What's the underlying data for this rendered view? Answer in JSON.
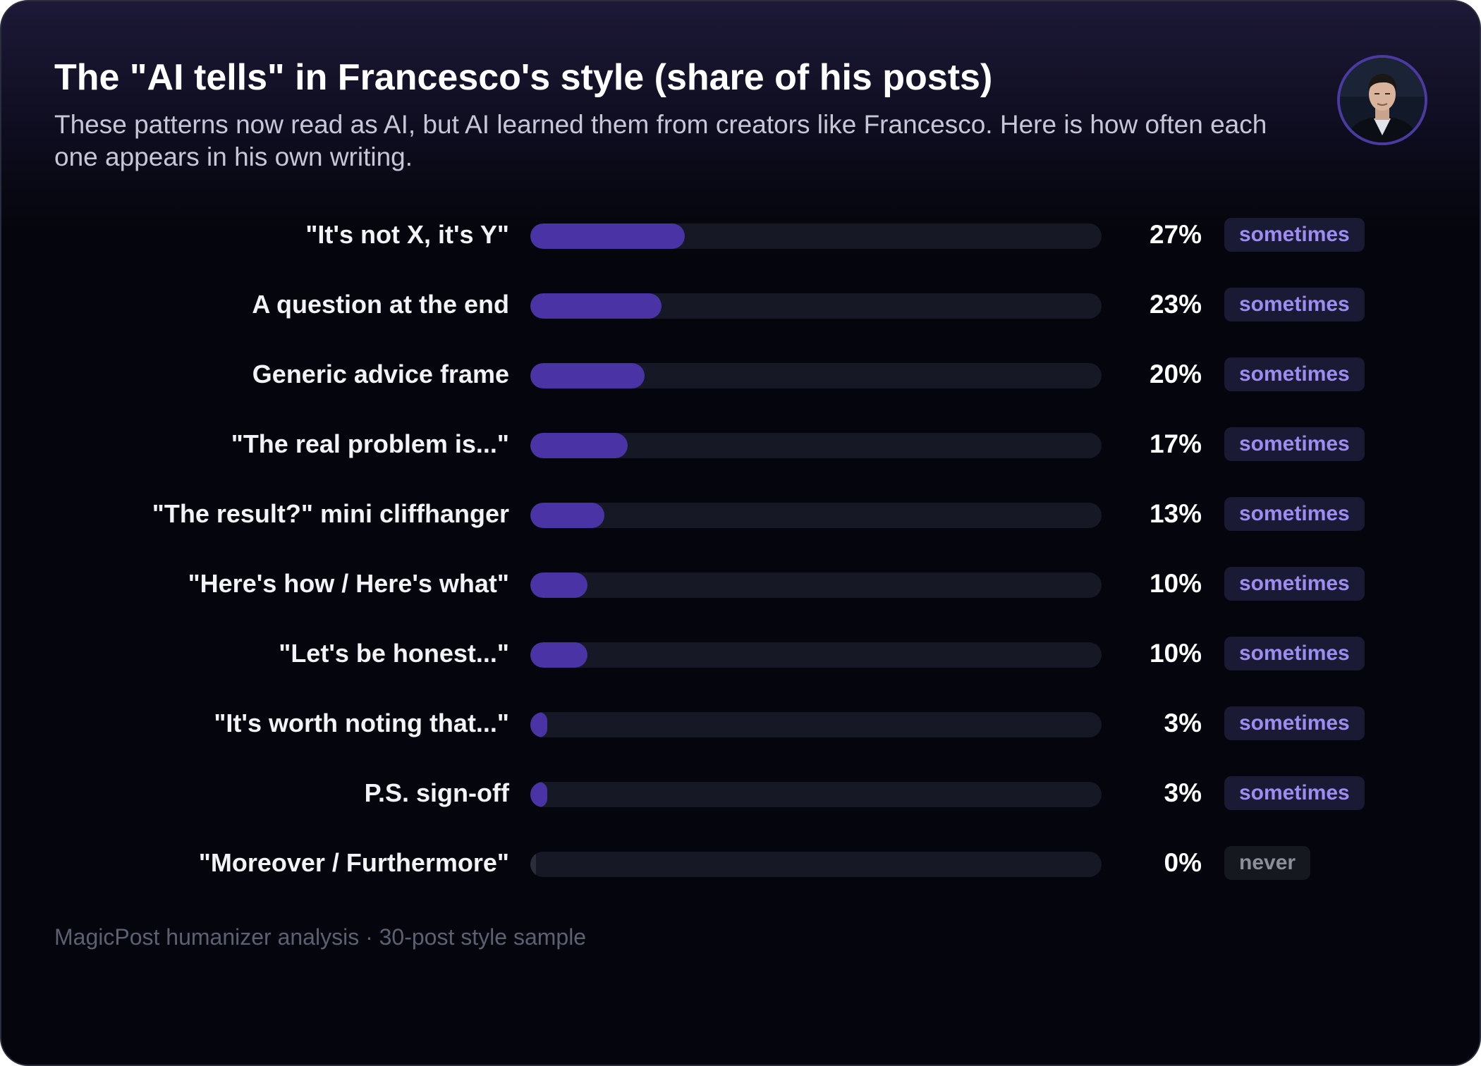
{
  "header": {
    "title": "The \"AI tells\" in Francesco's style (share of his posts)",
    "subtitle": "These patterns now read as AI, but AI learned them from creators like Francesco. Here is how often each one appears in his own writing."
  },
  "colors": {
    "bar_fill": "#4a33a4",
    "bar_track": "#161925",
    "tag_sometimes_text": "#9d8cf2",
    "tag_never_text": "#8c8e9a"
  },
  "chart_data": {
    "type": "bar",
    "orientation": "horizontal",
    "title": "The \"AI tells\" in Francesco's style (share of his posts)",
    "xlim": [
      0,
      100
    ],
    "unit": "%",
    "categories": [
      "\"It's not X, it's Y\"",
      "A question at the end",
      "Generic advice frame",
      "\"The real problem is...\"",
      "\"The result?\" mini cliffhanger",
      "\"Here's how / Here's what\"",
      "\"Let's be honest...\"",
      "\"It's worth noting that...\"",
      "P.S. sign-off",
      "\"Moreover / Furthermore\""
    ],
    "values": [
      27,
      23,
      20,
      17,
      13,
      10,
      10,
      3,
      3,
      0
    ],
    "value_labels": [
      "27%",
      "23%",
      "20%",
      "17%",
      "13%",
      "10%",
      "10%",
      "3%",
      "3%",
      "0%"
    ],
    "frequency_tags": [
      "sometimes",
      "sometimes",
      "sometimes",
      "sometimes",
      "sometimes",
      "sometimes",
      "sometimes",
      "sometimes",
      "sometimes",
      "never"
    ]
  },
  "footer": {
    "text": "MagicPost humanizer analysis · 30-post style sample"
  }
}
